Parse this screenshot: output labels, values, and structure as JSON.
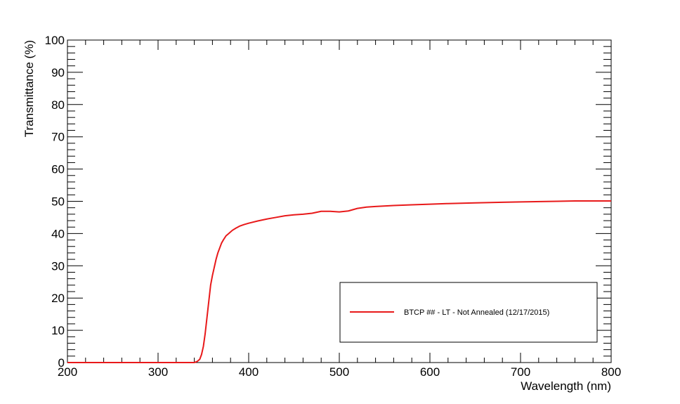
{
  "chart_data": {
    "type": "line",
    "xlabel": "Wavelength (nm)",
    "ylabel": "Transmittance (%)",
    "xlim": [
      200,
      800
    ],
    "ylim": [
      0,
      100
    ],
    "x_ticks": [
      200,
      300,
      400,
      500,
      600,
      700,
      800
    ],
    "y_ticks": [
      0,
      10,
      20,
      30,
      40,
      50,
      60,
      70,
      80,
      90,
      100
    ],
    "legend_position": "bottom-right",
    "grid": false,
    "series": [
      {
        "name": "BTCP ## - LT - Not Annealed (12/17/2015)",
        "color": "#e8191a",
        "x": [
          200,
          340,
          343,
          346,
          348,
          350,
          352,
          354,
          356,
          358,
          360,
          362,
          364,
          366,
          368,
          370,
          372,
          375,
          378,
          382,
          386,
          390,
          395,
          400,
          410,
          420,
          430,
          440,
          450,
          460,
          470,
          480,
          490,
          500,
          510,
          520,
          530,
          540,
          560,
          580,
          600,
          620,
          650,
          680,
          700,
          740,
          760,
          780,
          800
        ],
        "y": [
          0,
          0,
          0.3,
          1,
          2.5,
          5,
          9,
          14,
          19,
          24,
          27,
          29.5,
          32,
          34,
          35.5,
          37,
          38,
          39.3,
          40,
          41,
          41.7,
          42.3,
          42.8,
          43.2,
          43.9,
          44.5,
          45,
          45.5,
          45.8,
          46,
          46.3,
          46.9,
          46.9,
          46.7,
          47,
          47.8,
          48.2,
          48.4,
          48.7,
          48.9,
          49.1,
          49.3,
          49.5,
          49.7,
          49.8,
          50,
          50.1,
          50.1,
          50.1
        ]
      }
    ]
  }
}
